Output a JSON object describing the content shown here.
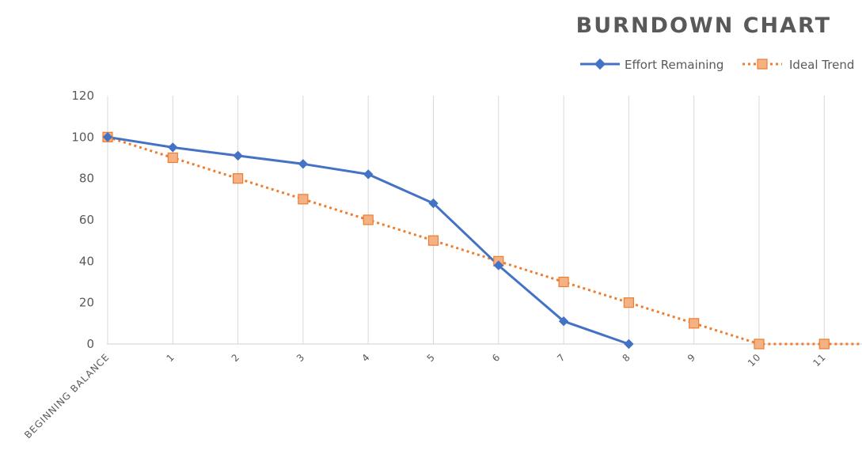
{
  "colors": {
    "effort": "#4472C4",
    "ideal": "#ED7D31",
    "ideal_marker_fill": "#F4B183",
    "grid": "#D9D9D9",
    "axis_text": "#595959",
    "title": "#595959"
  },
  "chart_data": {
    "type": "line",
    "title": "BURNDOWN CHART",
    "xlabel": "",
    "ylabel": "",
    "categories": [
      "BEGINNING BALANCE",
      "1",
      "2",
      "3",
      "4",
      "5",
      "6",
      "7",
      "8",
      "9",
      "10",
      "11"
    ],
    "ylim": [
      0,
      120
    ],
    "yticks": [
      "0",
      "20",
      "40",
      "60",
      "80",
      "100",
      "120"
    ],
    "grid": "vertical",
    "legend_position": "top-right",
    "series": [
      {
        "name": "Effort Remaining",
        "style": "solid",
        "marker": "diamond",
        "color": "#4472C4",
        "values": [
          100,
          95,
          91,
          87,
          82,
          68,
          38,
          11,
          0,
          null,
          null,
          null
        ]
      },
      {
        "name": "Ideal Trend",
        "style": "dotted",
        "marker": "square",
        "color": "#ED7D31",
        "values": [
          100,
          90,
          80,
          70,
          60,
          50,
          40,
          30,
          20,
          10,
          0,
          0
        ]
      }
    ]
  }
}
